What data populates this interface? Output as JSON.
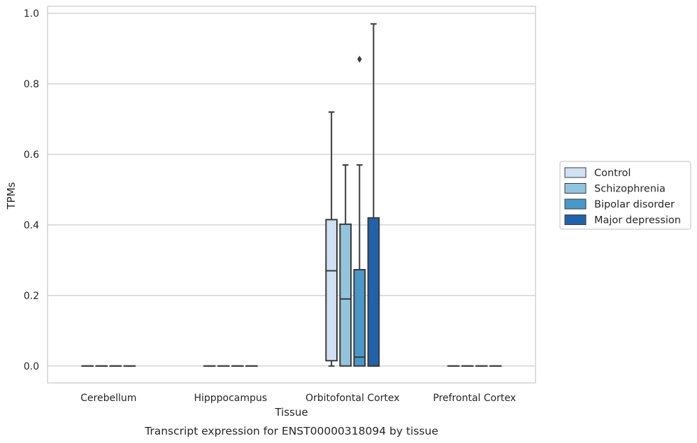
{
  "chart_data": {
    "type": "box",
    "caption": "Transcript expression for ENST00000318094 by tissue",
    "xlabel": "Tissue",
    "ylabel": "TPMs",
    "ylim": [
      -0.048,
      1.02
    ],
    "yticks": [
      "0.0",
      "0.2",
      "0.4",
      "0.6",
      "0.8",
      "1.0"
    ],
    "ytick_values": [
      0,
      0.2,
      0.4,
      0.6,
      0.8,
      1.0
    ],
    "grid": "horizontal",
    "legend_position": "right",
    "categories": [
      "Cerebellum",
      "Hipppocampus",
      "Orbitofontal Cortex",
      "Prefrontal Cortex"
    ],
    "series": [
      {
        "name": "Control",
        "color": "#cfe1f2"
      },
      {
        "name": "Schizophrenia",
        "color": "#93c4de"
      },
      {
        "name": "Bipolar disorder",
        "color": "#4a98c9"
      },
      {
        "name": "Major depression",
        "color": "#2163aa"
      }
    ],
    "boxes": [
      {
        "category": "Cerebellum",
        "series": "Control",
        "whislo": 0,
        "q1": 0,
        "med": 0,
        "q3": 0,
        "whishi": 0,
        "fliers": []
      },
      {
        "category": "Cerebellum",
        "series": "Schizophrenia",
        "whislo": 0,
        "q1": 0,
        "med": 0,
        "q3": 0,
        "whishi": 0,
        "fliers": []
      },
      {
        "category": "Cerebellum",
        "series": "Bipolar disorder",
        "whislo": 0,
        "q1": 0,
        "med": 0,
        "q3": 0,
        "whishi": 0,
        "fliers": []
      },
      {
        "category": "Cerebellum",
        "series": "Major depression",
        "whislo": 0,
        "q1": 0,
        "med": 0,
        "q3": 0,
        "whishi": 0,
        "fliers": []
      },
      {
        "category": "Hipppocampus",
        "series": "Control",
        "whislo": 0,
        "q1": 0,
        "med": 0,
        "q3": 0,
        "whishi": 0,
        "fliers": []
      },
      {
        "category": "Hipppocampus",
        "series": "Schizophrenia",
        "whislo": 0,
        "q1": 0,
        "med": 0,
        "q3": 0,
        "whishi": 0,
        "fliers": []
      },
      {
        "category": "Hipppocampus",
        "series": "Bipolar disorder",
        "whislo": 0,
        "q1": 0,
        "med": 0,
        "q3": 0,
        "whishi": 0,
        "fliers": []
      },
      {
        "category": "Hipppocampus",
        "series": "Major depression",
        "whislo": 0,
        "q1": 0,
        "med": 0,
        "q3": 0,
        "whishi": 0,
        "fliers": []
      },
      {
        "category": "Orbitofontal Cortex",
        "series": "Control",
        "whislo": 0,
        "q1": 0.015,
        "med": 0.27,
        "q3": 0.415,
        "whishi": 0.72,
        "fliers": []
      },
      {
        "category": "Orbitofontal Cortex",
        "series": "Schizophrenia",
        "whislo": 0,
        "q1": 0,
        "med": 0.19,
        "q3": 0.402,
        "whishi": 0.57,
        "fliers": []
      },
      {
        "category": "Orbitofontal Cortex",
        "series": "Bipolar disorder",
        "whislo": 0,
        "q1": 0,
        "med": 0.025,
        "q3": 0.273,
        "whishi": 0.57,
        "fliers": [
          0.87
        ]
      },
      {
        "category": "Orbitofontal Cortex",
        "series": "Major depression",
        "whislo": 0,
        "q1": 0,
        "med": 0,
        "q3": 0.42,
        "whishi": 0.97,
        "fliers": []
      },
      {
        "category": "Prefrontal Cortex",
        "series": "Control",
        "whislo": 0,
        "q1": 0,
        "med": 0,
        "q3": 0,
        "whishi": 0,
        "fliers": []
      },
      {
        "category": "Prefrontal Cortex",
        "series": "Schizophrenia",
        "whislo": 0,
        "q1": 0,
        "med": 0,
        "q3": 0,
        "whishi": 0,
        "fliers": []
      },
      {
        "category": "Prefrontal Cortex",
        "series": "Bipolar disorder",
        "whislo": 0,
        "q1": 0,
        "med": 0,
        "q3": 0,
        "whishi": 0,
        "fliers": []
      },
      {
        "category": "Prefrontal Cortex",
        "series": "Major depression",
        "whislo": 0,
        "q1": 0,
        "med": 0,
        "q3": 0,
        "whishi": 0,
        "fliers": []
      }
    ]
  }
}
